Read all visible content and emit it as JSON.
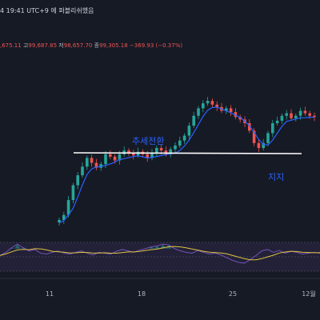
{
  "header": {
    "time_text": "4 19:41 UTC+9 에 퍼블리쉬했음"
  },
  "ohlc": {
    "open_value": ",675.11",
    "high_label": "고",
    "high_value": "99,687.85",
    "low_label": "저",
    "low_value": "98,657.70",
    "close_label": "종",
    "close_value": "99,305.18",
    "change_value": "−369.93 (−0.37%)"
  },
  "annotations": {
    "trend_change": "추세전환",
    "support": "지지"
  },
  "colors": {
    "background": "#161a25",
    "up": "#26a69a",
    "down": "#ef5350",
    "ma_line": "#2962ff",
    "rsi_line": "#7e57c2",
    "rsi_ma": "#e0c341",
    "annotation_text": "#2962ff",
    "support_line": "#ffffff",
    "rsi_band": "#7e57c2"
  },
  "chart_data": {
    "type": "candlestick",
    "x_tick_labels": [
      "11",
      "18",
      "25",
      "12월"
    ],
    "price_path": [
      0.02,
      0.06,
      0.18,
      0.3,
      0.38,
      0.45,
      0.52,
      0.48,
      0.44,
      0.47,
      0.55,
      0.53,
      0.5,
      0.55,
      0.58,
      0.56,
      0.54,
      0.57,
      0.55,
      0.52,
      0.56,
      0.6,
      0.58,
      0.55,
      0.59,
      0.62,
      0.66,
      0.7,
      0.78,
      0.86,
      0.92,
      0.96,
      0.98,
      0.95,
      0.93,
      0.9,
      0.92,
      0.89,
      0.85,
      0.83,
      0.8,
      0.74,
      0.64,
      0.6,
      0.64,
      0.72,
      0.8,
      0.82,
      0.86,
      0.88,
      0.84,
      0.86,
      0.9,
      0.88,
      0.86,
      0.85
    ],
    "rsi_path": [
      45,
      52,
      62,
      70,
      62,
      55,
      58,
      50,
      48,
      52,
      55,
      50,
      48,
      52,
      55,
      50,
      46,
      52,
      50,
      48,
      54,
      58,
      55,
      52,
      57,
      60,
      64,
      66,
      70,
      68,
      60,
      55,
      52,
      50,
      56,
      52,
      48,
      50,
      46,
      40,
      34,
      30,
      28,
      36,
      45,
      55,
      58,
      52,
      56,
      50,
      54,
      52,
      48,
      50,
      52,
      50
    ],
    "rsi_levels": [
      70,
      50,
      30
    ],
    "support_line": "horizontal",
    "annotations": [
      "추세전환",
      "지지"
    ]
  }
}
